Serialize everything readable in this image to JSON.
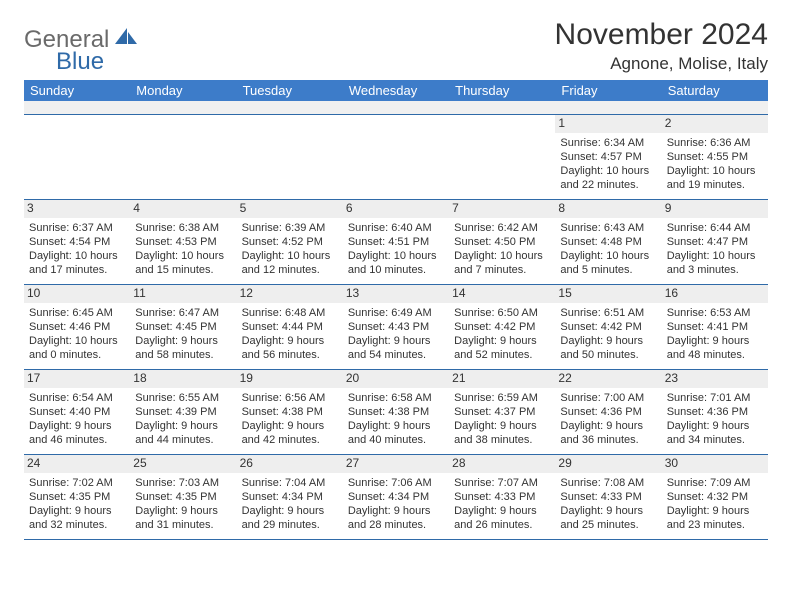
{
  "brand": {
    "part1": "General",
    "part2": "Blue"
  },
  "title": "November 2024",
  "location": "Agnone, Molise, Italy",
  "colors": {
    "header_bg": "#3d7cc9",
    "header_text": "#ffffff",
    "border": "#2f6aa8",
    "dnum_bg": "#eeeeee",
    "text": "#333333",
    "logo_gray": "#6a6a6a",
    "logo_blue": "#2f6aa8"
  },
  "day_names": [
    "Sunday",
    "Monday",
    "Tuesday",
    "Wednesday",
    "Thursday",
    "Friday",
    "Saturday"
  ],
  "weeks": [
    [
      {
        "empty": true
      },
      {
        "empty": true
      },
      {
        "empty": true
      },
      {
        "empty": true
      },
      {
        "empty": true
      },
      {
        "d": "1",
        "sr": "Sunrise: 6:34 AM",
        "ss": "Sunset: 4:57 PM",
        "dl1": "Daylight: 10 hours",
        "dl2": "and 22 minutes."
      },
      {
        "d": "2",
        "sr": "Sunrise: 6:36 AM",
        "ss": "Sunset: 4:55 PM",
        "dl1": "Daylight: 10 hours",
        "dl2": "and 19 minutes."
      }
    ],
    [
      {
        "d": "3",
        "sr": "Sunrise: 6:37 AM",
        "ss": "Sunset: 4:54 PM",
        "dl1": "Daylight: 10 hours",
        "dl2": "and 17 minutes."
      },
      {
        "d": "4",
        "sr": "Sunrise: 6:38 AM",
        "ss": "Sunset: 4:53 PM",
        "dl1": "Daylight: 10 hours",
        "dl2": "and 15 minutes."
      },
      {
        "d": "5",
        "sr": "Sunrise: 6:39 AM",
        "ss": "Sunset: 4:52 PM",
        "dl1": "Daylight: 10 hours",
        "dl2": "and 12 minutes."
      },
      {
        "d": "6",
        "sr": "Sunrise: 6:40 AM",
        "ss": "Sunset: 4:51 PM",
        "dl1": "Daylight: 10 hours",
        "dl2": "and 10 minutes."
      },
      {
        "d": "7",
        "sr": "Sunrise: 6:42 AM",
        "ss": "Sunset: 4:50 PM",
        "dl1": "Daylight: 10 hours",
        "dl2": "and 7 minutes."
      },
      {
        "d": "8",
        "sr": "Sunrise: 6:43 AM",
        "ss": "Sunset: 4:48 PM",
        "dl1": "Daylight: 10 hours",
        "dl2": "and 5 minutes."
      },
      {
        "d": "9",
        "sr": "Sunrise: 6:44 AM",
        "ss": "Sunset: 4:47 PM",
        "dl1": "Daylight: 10 hours",
        "dl2": "and 3 minutes."
      }
    ],
    [
      {
        "d": "10",
        "sr": "Sunrise: 6:45 AM",
        "ss": "Sunset: 4:46 PM",
        "dl1": "Daylight: 10 hours",
        "dl2": "and 0 minutes."
      },
      {
        "d": "11",
        "sr": "Sunrise: 6:47 AM",
        "ss": "Sunset: 4:45 PM",
        "dl1": "Daylight: 9 hours",
        "dl2": "and 58 minutes."
      },
      {
        "d": "12",
        "sr": "Sunrise: 6:48 AM",
        "ss": "Sunset: 4:44 PM",
        "dl1": "Daylight: 9 hours",
        "dl2": "and 56 minutes."
      },
      {
        "d": "13",
        "sr": "Sunrise: 6:49 AM",
        "ss": "Sunset: 4:43 PM",
        "dl1": "Daylight: 9 hours",
        "dl2": "and 54 minutes."
      },
      {
        "d": "14",
        "sr": "Sunrise: 6:50 AM",
        "ss": "Sunset: 4:42 PM",
        "dl1": "Daylight: 9 hours",
        "dl2": "and 52 minutes."
      },
      {
        "d": "15",
        "sr": "Sunrise: 6:51 AM",
        "ss": "Sunset: 4:42 PM",
        "dl1": "Daylight: 9 hours",
        "dl2": "and 50 minutes."
      },
      {
        "d": "16",
        "sr": "Sunrise: 6:53 AM",
        "ss": "Sunset: 4:41 PM",
        "dl1": "Daylight: 9 hours",
        "dl2": "and 48 minutes."
      }
    ],
    [
      {
        "d": "17",
        "sr": "Sunrise: 6:54 AM",
        "ss": "Sunset: 4:40 PM",
        "dl1": "Daylight: 9 hours",
        "dl2": "and 46 minutes."
      },
      {
        "d": "18",
        "sr": "Sunrise: 6:55 AM",
        "ss": "Sunset: 4:39 PM",
        "dl1": "Daylight: 9 hours",
        "dl2": "and 44 minutes."
      },
      {
        "d": "19",
        "sr": "Sunrise: 6:56 AM",
        "ss": "Sunset: 4:38 PM",
        "dl1": "Daylight: 9 hours",
        "dl2": "and 42 minutes."
      },
      {
        "d": "20",
        "sr": "Sunrise: 6:58 AM",
        "ss": "Sunset: 4:38 PM",
        "dl1": "Daylight: 9 hours",
        "dl2": "and 40 minutes."
      },
      {
        "d": "21",
        "sr": "Sunrise: 6:59 AM",
        "ss": "Sunset: 4:37 PM",
        "dl1": "Daylight: 9 hours",
        "dl2": "and 38 minutes."
      },
      {
        "d": "22",
        "sr": "Sunrise: 7:00 AM",
        "ss": "Sunset: 4:36 PM",
        "dl1": "Daylight: 9 hours",
        "dl2": "and 36 minutes."
      },
      {
        "d": "23",
        "sr": "Sunrise: 7:01 AM",
        "ss": "Sunset: 4:36 PM",
        "dl1": "Daylight: 9 hours",
        "dl2": "and 34 minutes."
      }
    ],
    [
      {
        "d": "24",
        "sr": "Sunrise: 7:02 AM",
        "ss": "Sunset: 4:35 PM",
        "dl1": "Daylight: 9 hours",
        "dl2": "and 32 minutes."
      },
      {
        "d": "25",
        "sr": "Sunrise: 7:03 AM",
        "ss": "Sunset: 4:35 PM",
        "dl1": "Daylight: 9 hours",
        "dl2": "and 31 minutes."
      },
      {
        "d": "26",
        "sr": "Sunrise: 7:04 AM",
        "ss": "Sunset: 4:34 PM",
        "dl1": "Daylight: 9 hours",
        "dl2": "and 29 minutes."
      },
      {
        "d": "27",
        "sr": "Sunrise: 7:06 AM",
        "ss": "Sunset: 4:34 PM",
        "dl1": "Daylight: 9 hours",
        "dl2": "and 28 minutes."
      },
      {
        "d": "28",
        "sr": "Sunrise: 7:07 AM",
        "ss": "Sunset: 4:33 PM",
        "dl1": "Daylight: 9 hours",
        "dl2": "and 26 minutes."
      },
      {
        "d": "29",
        "sr": "Sunrise: 7:08 AM",
        "ss": "Sunset: 4:33 PM",
        "dl1": "Daylight: 9 hours",
        "dl2": "and 25 minutes."
      },
      {
        "d": "30",
        "sr": "Sunrise: 7:09 AM",
        "ss": "Sunset: 4:32 PM",
        "dl1": "Daylight: 9 hours",
        "dl2": "and 23 minutes."
      }
    ]
  ]
}
